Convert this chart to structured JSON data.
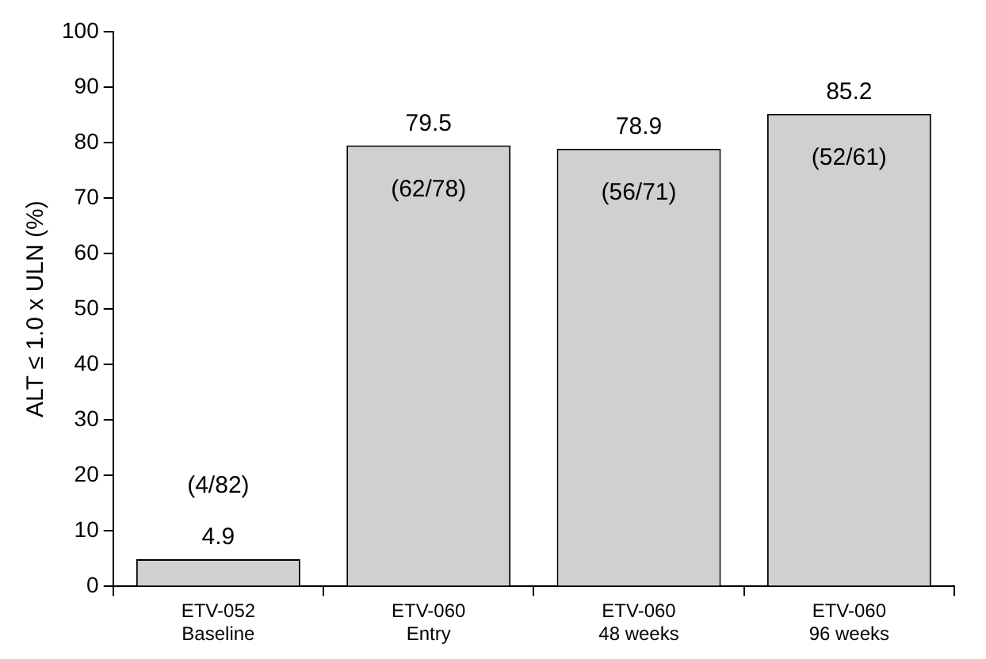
{
  "chart_data": {
    "type": "bar",
    "ylabel": "ALT ≤ 1.0 x ULN (%)",
    "categories": [
      "ETV-052\nBaseline",
      "ETV-060\nEntry",
      "ETV-060\n48 weeks",
      "ETV-060\n96 weeks"
    ],
    "values": [
      4.9,
      79.5,
      78.9,
      85.2
    ],
    "color": "#d0d0d0",
    "ylim": [
      0,
      100
    ],
    "yticks": [
      0,
      10,
      20,
      30,
      40,
      50,
      60,
      70,
      80,
      90,
      100
    ],
    "grid": false,
    "legend": false,
    "data_labels": true,
    "annotations": [
      "(4/82)",
      "(62/78)",
      "(56/71)",
      "(52/61)"
    ]
  }
}
